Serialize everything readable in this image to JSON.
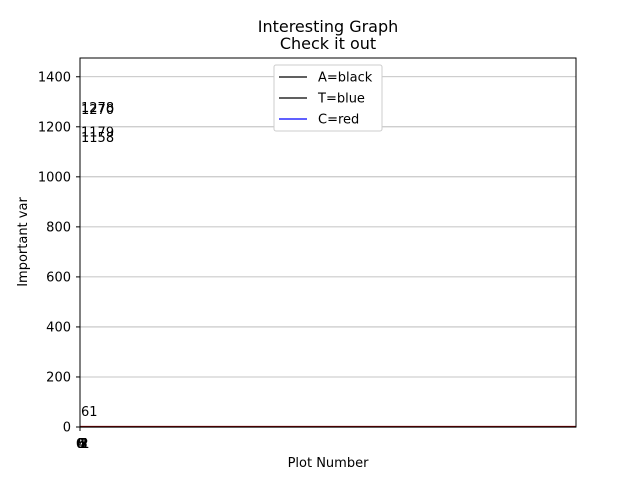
{
  "chart_data": {
    "type": "bar",
    "title": "Interesting Graph",
    "subtitle": "Check it out",
    "xlabel": "Plot Number",
    "ylabel": "Important var",
    "xlim": [
      0,
      6
    ],
    "ylim": [
      0,
      1475
    ],
    "yticks": [
      0,
      200,
      400,
      600,
      800,
      1000,
      1200,
      1400
    ],
    "xtick_labels": [
      "0",
      "6",
      "5",
      "4",
      "3",
      "2",
      "1"
    ],
    "grid": "horizontal",
    "legend_position": "top-center",
    "legend": [
      {
        "label": "A=black",
        "color": "#000000"
      },
      {
        "label": "T=blue",
        "color": "#000000"
      },
      {
        "label": "C=red",
        "color": "#0000ff"
      }
    ],
    "series": [
      {
        "name": "A=black",
        "color": "#000000",
        "values": [
          1278,
          1179
        ]
      },
      {
        "name": "T=blue",
        "color": "#000000",
        "values": [
          1270,
          1158
        ]
      },
      {
        "name": "C=red",
        "color": "#0000ff",
        "values": [
          61,
          0
        ]
      }
    ],
    "data_labels": [
      {
        "text": "1278",
        "value": 1278
      },
      {
        "text": "1270",
        "value": 1270
      },
      {
        "text": "1179",
        "value": 1179
      },
      {
        "text": "1158",
        "value": 1158
      },
      {
        "text": "61",
        "value": 61
      }
    ]
  }
}
